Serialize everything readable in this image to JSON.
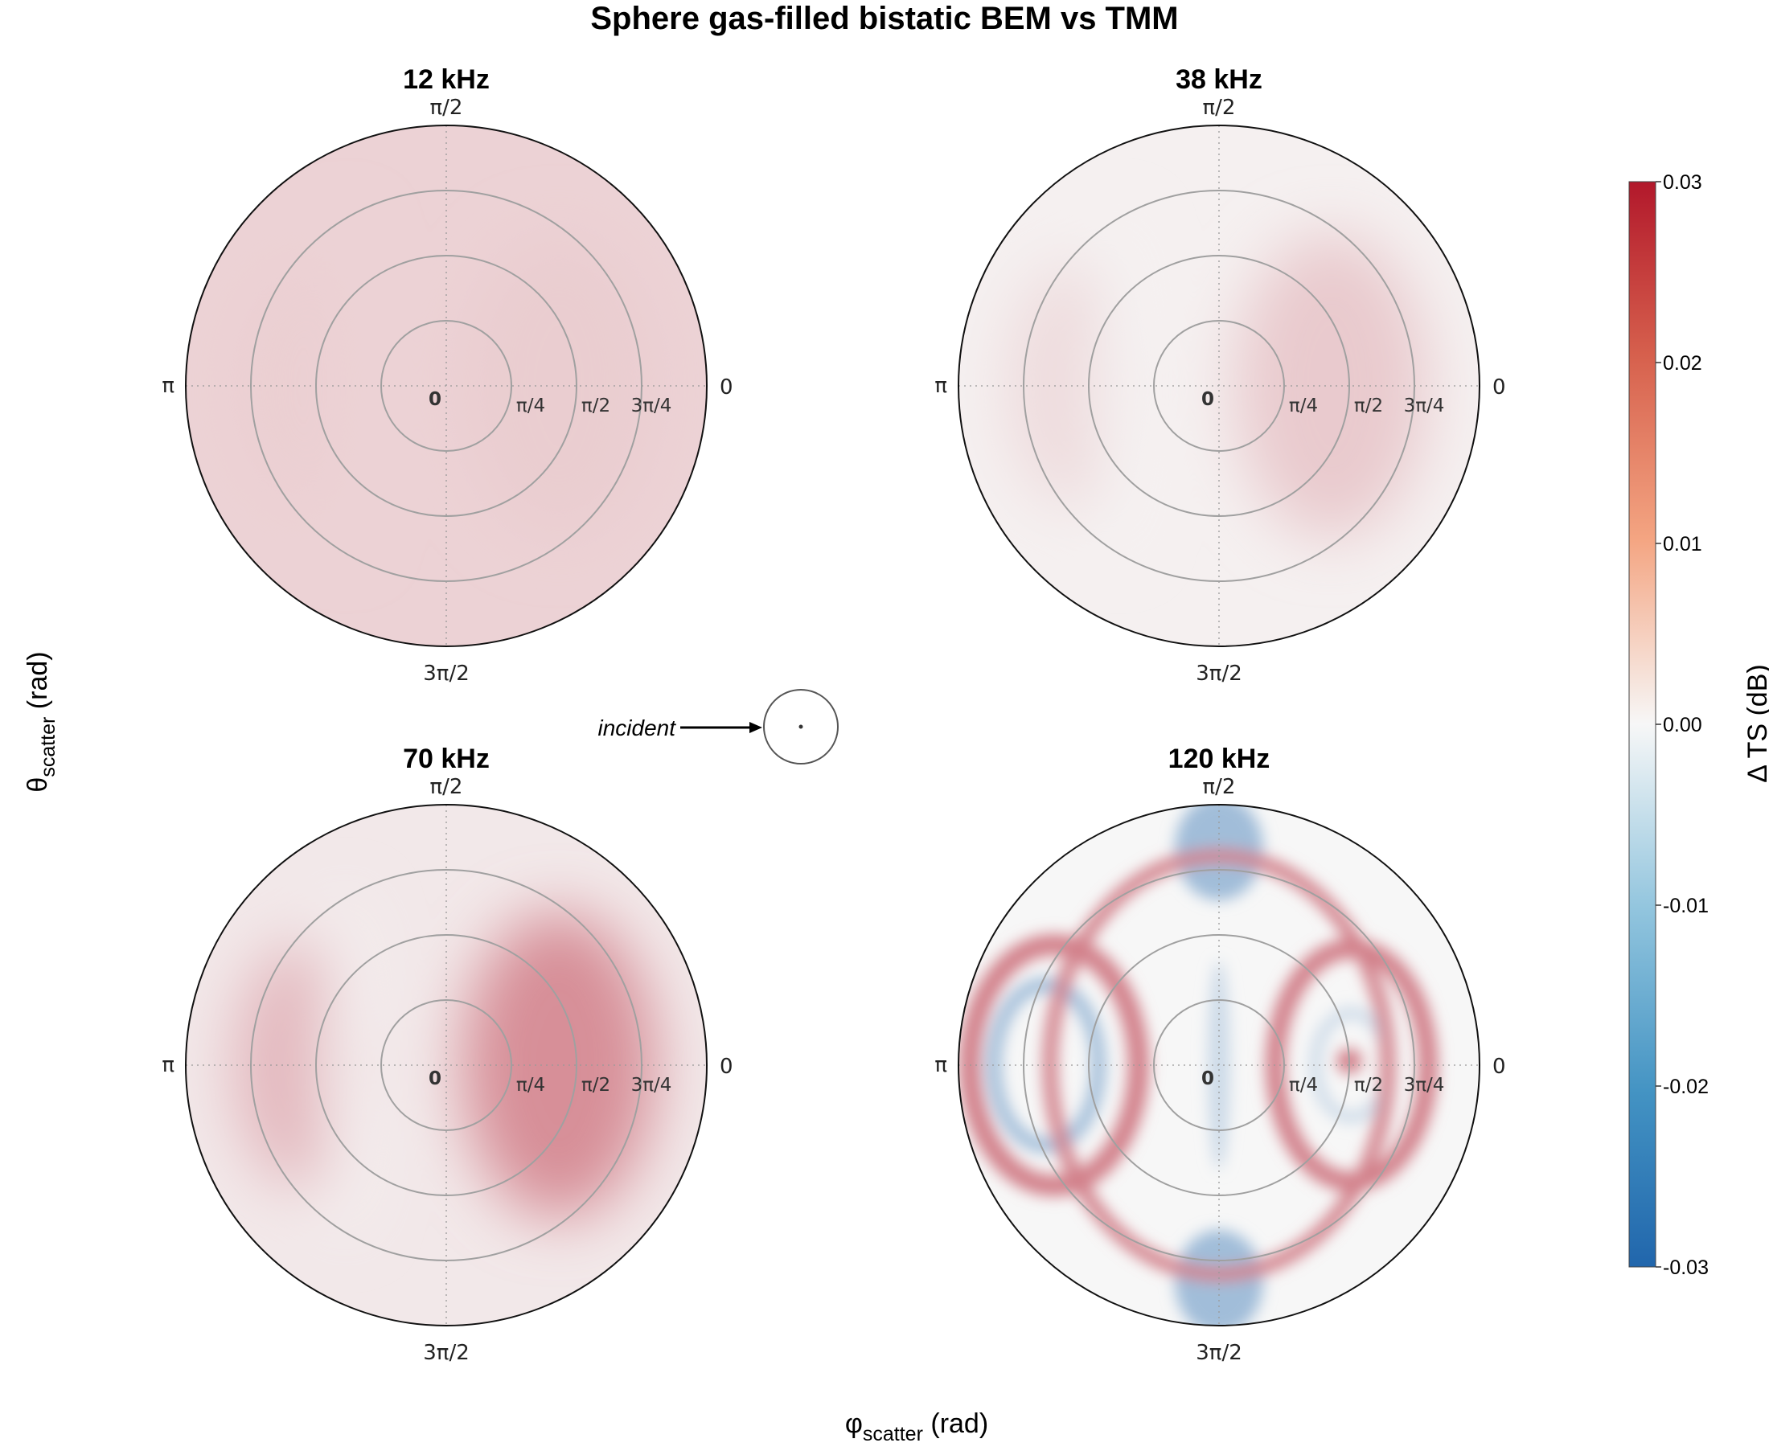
{
  "title": "Sphere gas-filled bistatic BEM vs TMM",
  "axes": {
    "x_label_main": "φ",
    "x_label_sub": "scatter",
    "x_label_unit": " (rad)",
    "y_label_main": "θ",
    "y_label_sub": "scatter",
    "y_label_unit": " (rad)"
  },
  "incident_label": "incident",
  "colorbar": {
    "label": "Δ TS (dB)",
    "ticks": [
      "0.03",
      "0.02",
      "0.01",
      "0.00",
      "-0.01",
      "-0.02",
      "-0.03"
    ],
    "min": -0.03,
    "max": 0.03,
    "colors": {
      "low": "#2166ac",
      "mid": "#f7f7f7",
      "high": "#b2182b"
    }
  },
  "chart_data": [
    {
      "type": "heatmap",
      "projection": "polar",
      "title": "12 kHz",
      "angular_ticks": [
        "0",
        "π/2",
        "π",
        "3π/2"
      ],
      "radial_ticks": [
        "0",
        "π/4",
        "π/2",
        "3π/4"
      ],
      "radial_range": [
        0,
        1.0472
      ],
      "value_range": [
        -0.03,
        0.03
      ],
      "approx_pattern": {
        "base": 0.005,
        "lateral": 0.0007,
        "ring": 0.0,
        "blue_poles": 0.0
      }
    },
    {
      "type": "heatmap",
      "projection": "polar",
      "title": "38 kHz",
      "angular_ticks": [
        "0",
        "π/2",
        "π",
        "3π/2"
      ],
      "radial_ticks": [
        "0",
        "π/4",
        "π/2",
        "3π/4"
      ],
      "radial_range": [
        0,
        1.0472
      ],
      "value_range": [
        -0.03,
        0.03
      ],
      "approx_pattern": {
        "base": 0.001,
        "lateral": 0.005,
        "ring": 0.0,
        "blue_poles": 0.0
      }
    },
    {
      "type": "heatmap",
      "projection": "polar",
      "title": "70 kHz",
      "angular_ticks": [
        "0",
        "π/2",
        "π",
        "3π/2"
      ],
      "radial_ticks": [
        "0",
        "π/4",
        "π/2",
        "3π/4"
      ],
      "radial_range": [
        0,
        1.0472
      ],
      "value_range": [
        -0.03,
        0.03
      ],
      "approx_pattern": {
        "base": 0.002,
        "lateral": 0.012,
        "ring": 0.0,
        "blue_poles": 0.0
      }
    },
    {
      "type": "heatmap",
      "projection": "polar",
      "title": "120 kHz",
      "angular_ticks": [
        "0",
        "π/2",
        "π",
        "3π/2"
      ],
      "radial_ticks": [
        "0",
        "π/4",
        "π/2",
        "3π/4"
      ],
      "radial_range": [
        0,
        1.0472
      ],
      "value_range": [
        -0.03,
        0.03
      ],
      "approx_pattern": {
        "base": 0.0,
        "lateral": 0.0,
        "ring": 0.016,
        "blue_poles": -0.012
      }
    }
  ]
}
